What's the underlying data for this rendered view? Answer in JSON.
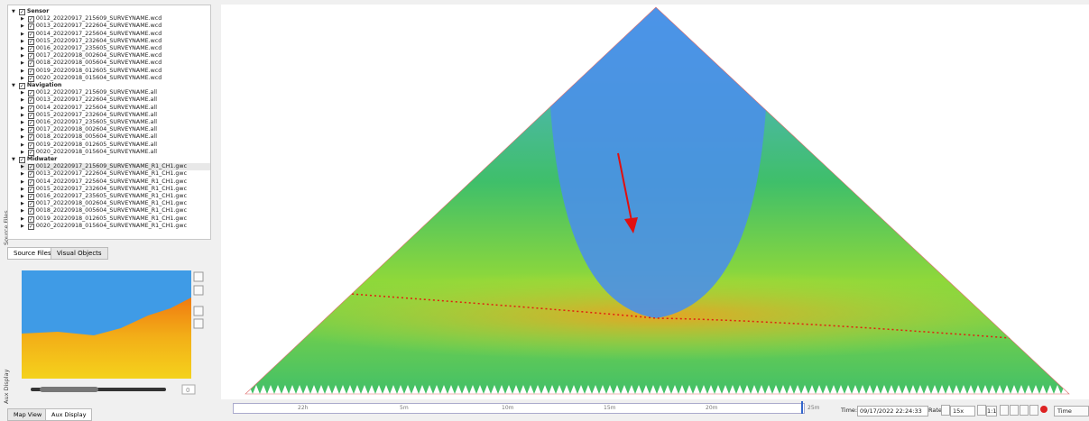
{
  "side_labels": {
    "source_files": "Source Files",
    "aux_display": "Aux Display"
  },
  "tree": {
    "groups": [
      {
        "label": "Sensor",
        "files": [
          "0012_20220917_215609_SURVEYNAME.wcd",
          "0013_20220917_222604_SURVEYNAME.wcd",
          "0014_20220917_225604_SURVEYNAME.wcd",
          "0015_20220917_232604_SURVEYNAME.wcd",
          "0016_20220917_235605_SURVEYNAME.wcd",
          "0017_20220918_002604_SURVEYNAME.wcd",
          "0018_20220918_005604_SURVEYNAME.wcd",
          "0019_20220918_012605_SURVEYNAME.wcd",
          "0020_20220918_015604_SURVEYNAME.wcd"
        ]
      },
      {
        "label": "Navigation",
        "files": [
          "0012_20220917_215609_SURVEYNAME.all",
          "0013_20220917_222604_SURVEYNAME.all",
          "0014_20220917_225604_SURVEYNAME.all",
          "0015_20220917_232604_SURVEYNAME.all",
          "0016_20220917_235605_SURVEYNAME.all",
          "0017_20220918_002604_SURVEYNAME.all",
          "0018_20220918_005604_SURVEYNAME.all",
          "0019_20220918_012605_SURVEYNAME.all",
          "0020_20220918_015604_SURVEYNAME.all"
        ]
      },
      {
        "label": "Midwater",
        "files": [
          "0012_20220917_215609_SURVEYNAME_R1_CH1.gwc",
          "0013_20220917_222604_SURVEYNAME_R1_CH1.gwc",
          "0014_20220917_225604_SURVEYNAME_R1_CH1.gwc",
          "0015_20220917_232604_SURVEYNAME_R1_CH1.gwc",
          "0016_20220917_235605_SURVEYNAME_R1_CH1.gwc",
          "0017_20220918_002604_SURVEYNAME_R1_CH1.gwc",
          "0018_20220918_005604_SURVEYNAME_R1_CH1.gwc",
          "0019_20220918_012605_SURVEYNAME_R1_CH1.gwc",
          "0020_20220918_015604_SURVEYNAME_R1_CH1.gwc"
        ]
      }
    ]
  },
  "tabs": [
    "Source Files",
    "Visual Objects"
  ],
  "aux": {
    "spin_value": "0"
  },
  "bottom_tabs": [
    "Map View",
    "Aux Display"
  ],
  "timeline": {
    "labels": [
      "22h",
      "5m",
      "10m",
      "15m",
      "20m",
      "25m"
    ]
  },
  "controls": {
    "time_label": "Time:",
    "time_value": "09/17/2022 22:24:33",
    "rate_label": "Rate:",
    "rate_value": "15x",
    "ratio": "1:1",
    "mode": "Time"
  }
}
